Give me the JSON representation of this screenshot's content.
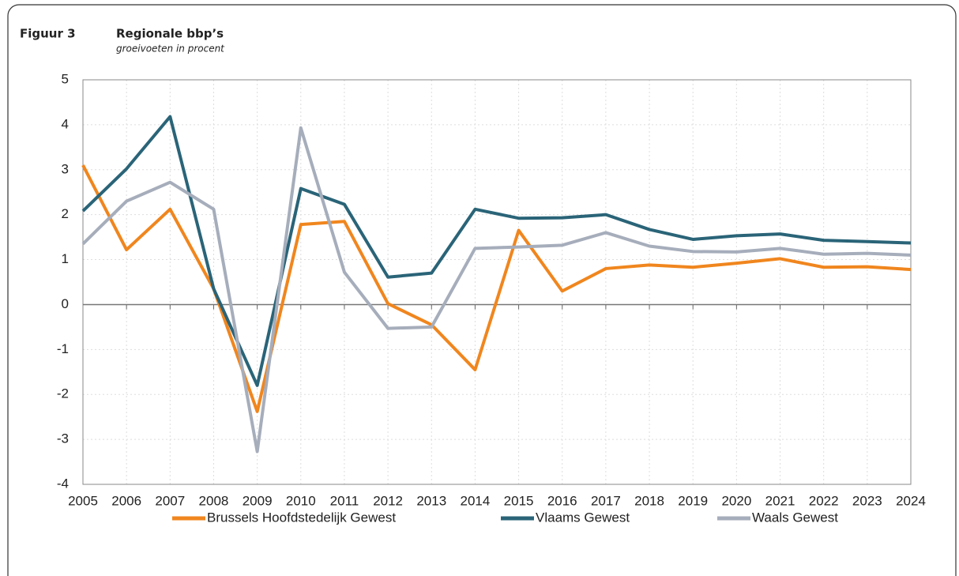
{
  "chart_data": {
    "type": "line",
    "figure_label": "Figuur 3",
    "title": "Regionale bbp’s",
    "subtitle": "groeivoeten in procent",
    "x": [
      2005,
      2006,
      2007,
      2008,
      2009,
      2010,
      2011,
      2012,
      2013,
      2014,
      2015,
      2016,
      2017,
      2018,
      2019,
      2020,
      2021,
      2022,
      2023,
      2024
    ],
    "xlim": [
      2005,
      2024
    ],
    "ylim": [
      -4,
      5
    ],
    "yticks": [
      -4,
      -3,
      -2,
      -1,
      0,
      1,
      2,
      3,
      4,
      5
    ],
    "grid": true,
    "legend": "bottom",
    "series": [
      {
        "name": "Brussels Hoofdstedelijk Gewest",
        "color": "#f0861e",
        "values": [
          3.1,
          1.22,
          2.12,
          0.35,
          -2.38,
          1.78,
          1.85,
          0.02,
          -0.45,
          -1.45,
          1.65,
          0.3,
          0.8,
          0.88,
          0.83,
          0.92,
          1.02,
          0.83,
          0.84,
          0.78
        ]
      },
      {
        "name": "Vlaams Gewest",
        "color": "#2a6478",
        "values": [
          2.08,
          3.02,
          4.18,
          0.35,
          -1.8,
          2.58,
          2.23,
          0.61,
          0.7,
          2.12,
          1.92,
          1.93,
          2.0,
          1.67,
          1.45,
          1.53,
          1.57,
          1.43,
          1.4,
          1.37
        ]
      },
      {
        "name": "Waals Gewest",
        "color": "#a6adbb",
        "values": [
          1.35,
          2.3,
          2.72,
          2.12,
          -3.27,
          3.93,
          0.72,
          -0.53,
          -0.5,
          1.25,
          1.28,
          1.32,
          1.6,
          1.3,
          1.18,
          1.17,
          1.25,
          1.12,
          1.14,
          1.1
        ]
      }
    ]
  }
}
